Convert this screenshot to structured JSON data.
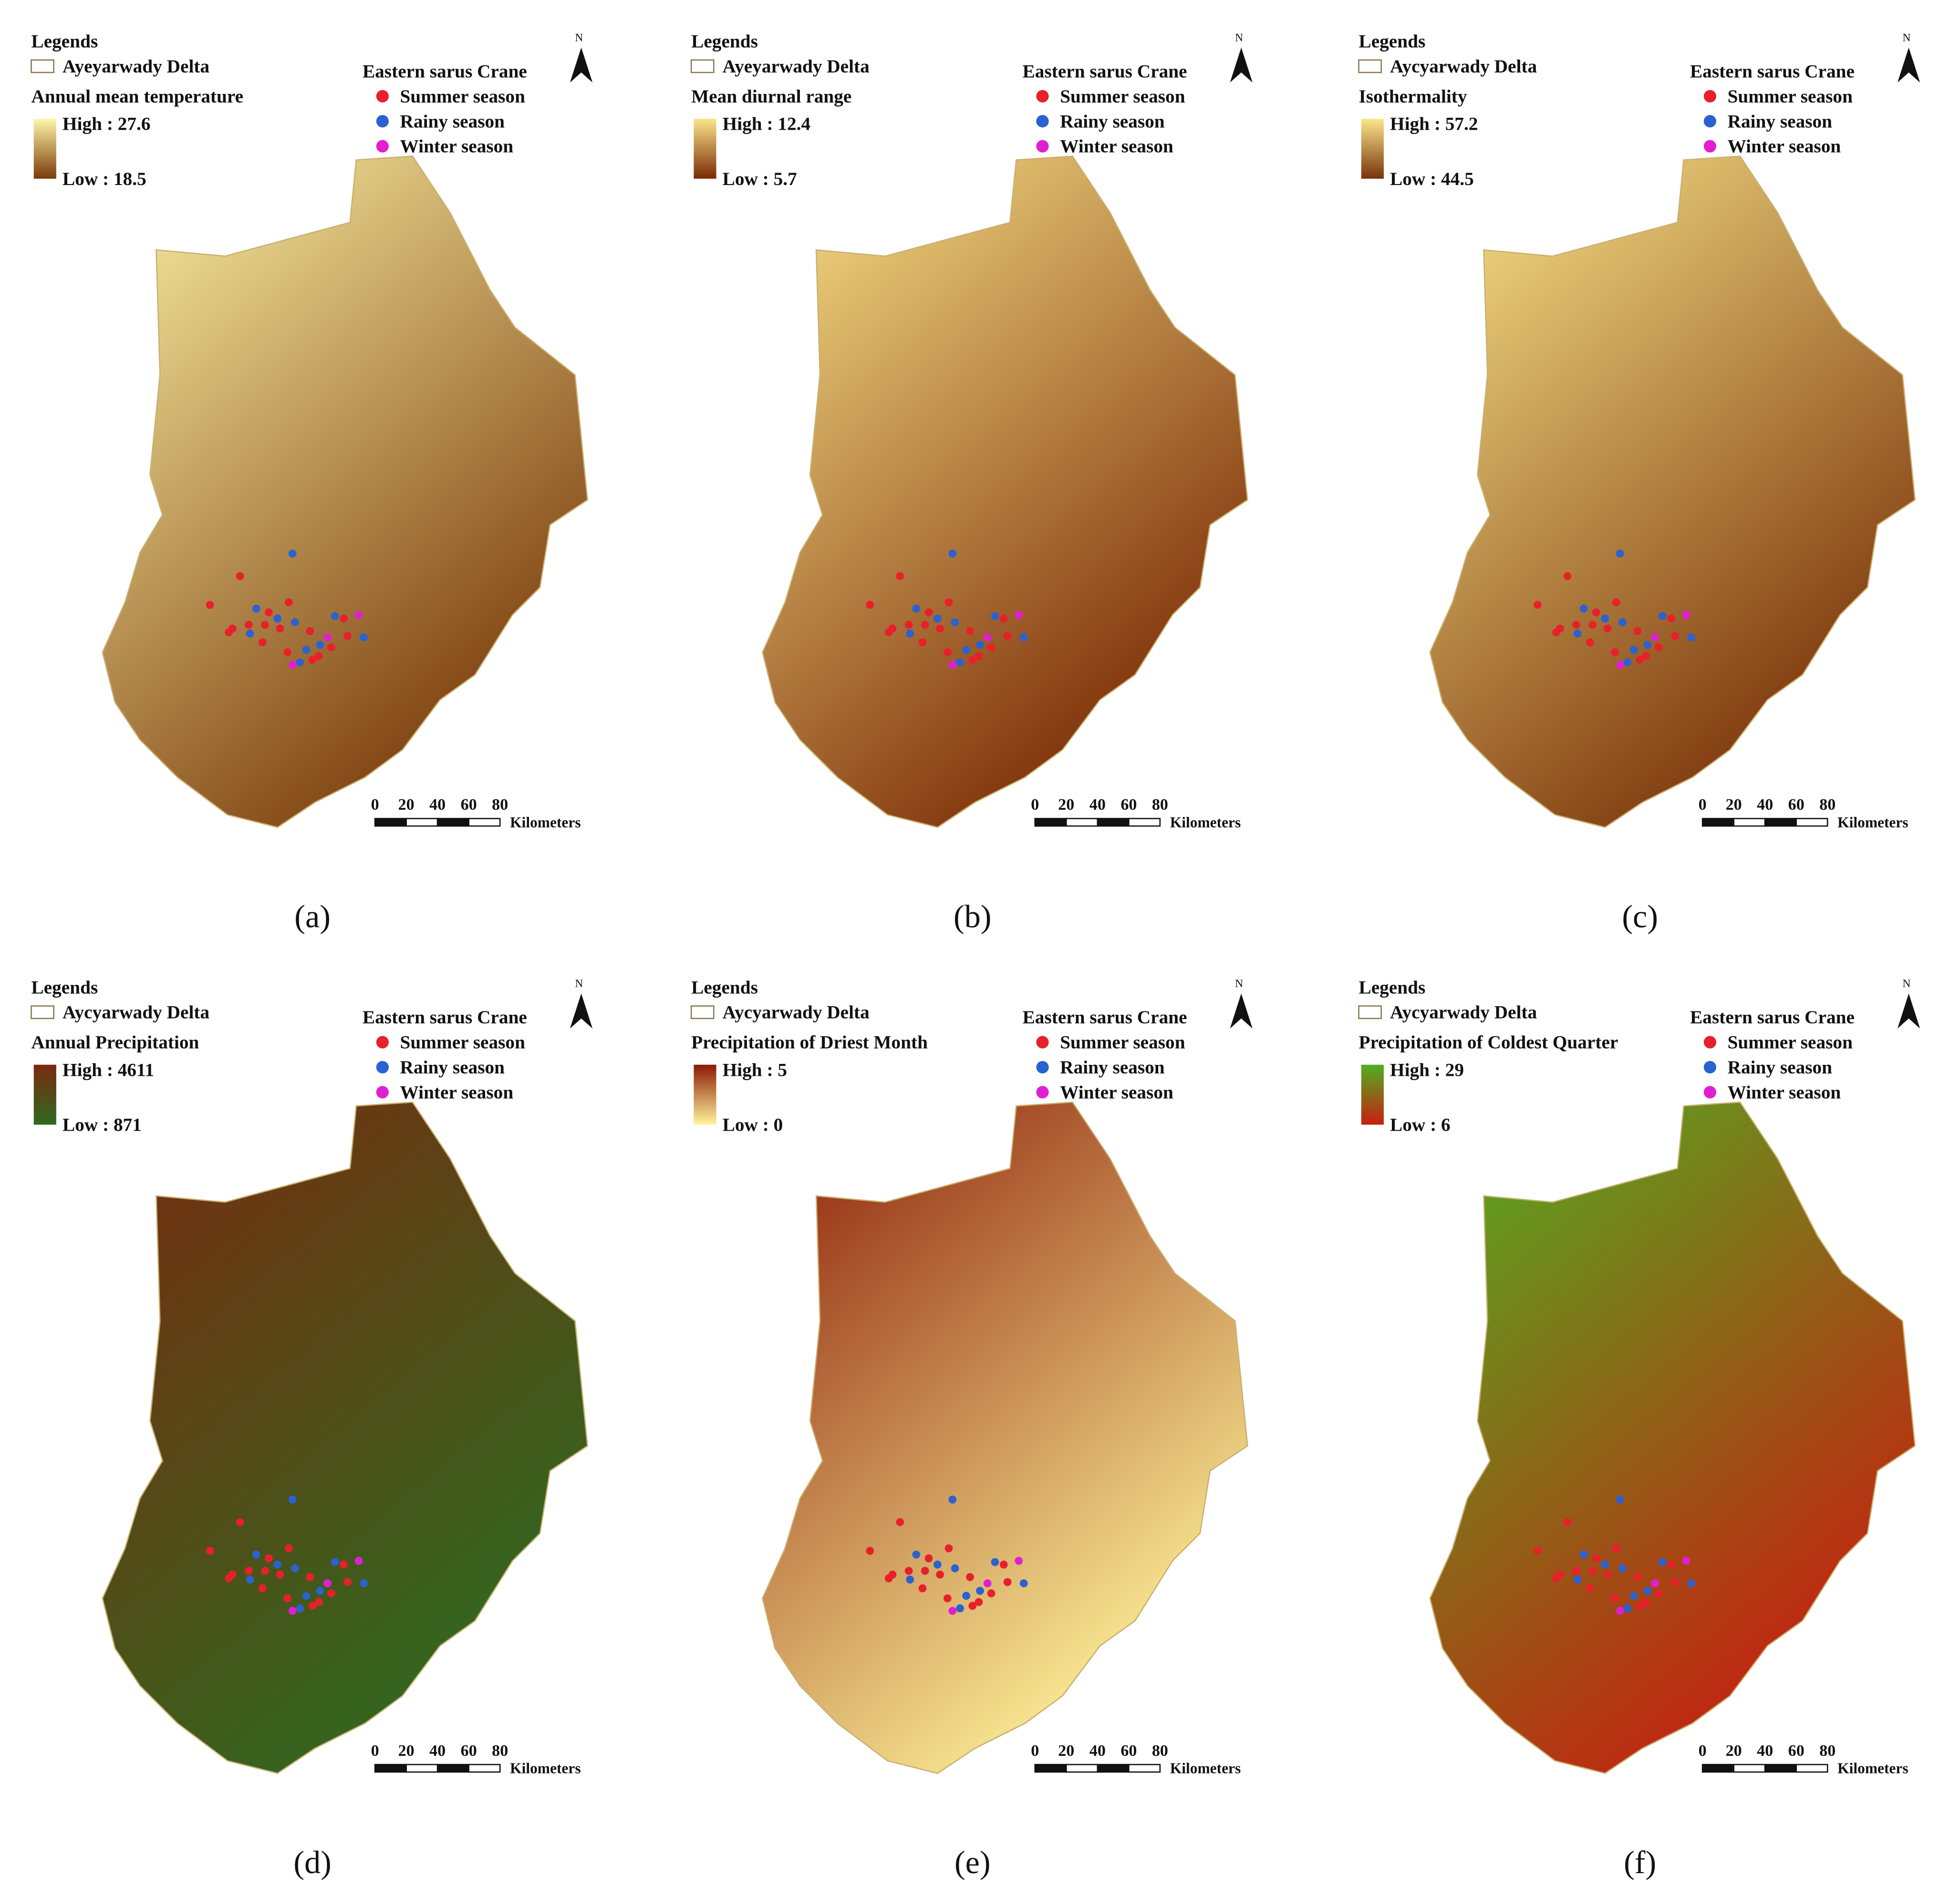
{
  "legend_heading": "Legends",
  "species_heading": "Eastern sarus Crane",
  "seasons": [
    {
      "name": "Summer season",
      "color": "#e8202a"
    },
    {
      "name": "Rainy season",
      "color": "#2a62d0"
    },
    {
      "name": "Winter season",
      "color": "#e020d0"
    }
  ],
  "north_label": "N",
  "scale_ticks": [
    "0",
    "20",
    "40",
    "60",
    "80"
  ],
  "scale_unit": "Kilometers",
  "panels": [
    {
      "label": "(a)",
      "boundary_label": "Ayeyarwady Delta",
      "variable": "Annual mean temperature",
      "high": "High : 27.6",
      "low": "Low : 18.5",
      "ramp": [
        "#fff6a8",
        "#7a3a0a"
      ]
    },
    {
      "label": "(b)",
      "boundary_label": "Ayeyarwady Delta",
      "variable": "Mean diurnal range",
      "high": "High : 12.4",
      "low": "Low : 5.7",
      "ramp": [
        "#fbe58a",
        "#7a2a05"
      ]
    },
    {
      "label": "(c)",
      "boundary_label": "Aycyarwady Delta",
      "variable": "Isothermality",
      "high": "High : 57.2",
      "low": "Low : 44.5",
      "ramp": [
        "#fbe88c",
        "#7a3208"
      ]
    },
    {
      "label": "(d)",
      "boundary_label": "Aycyarwady Delta",
      "variable": "Annual Precipitation",
      "high": "High : 4611",
      "low": "Low : 871",
      "ramp": [
        "#7a2a10",
        "#2e6a20"
      ]
    },
    {
      "label": "(e)",
      "boundary_label": "Aycyarwady Delta",
      "variable": "Precipitation of Driest Month",
      "high": "High : 5",
      "low": "Low : 0",
      "ramp": [
        "#8a1a05",
        "#fff49a"
      ]
    },
    {
      "label": "(f)",
      "boundary_label": "Aycyarwady Delta",
      "variable": "Precipitation of Coldest Quarter",
      "high": "High : 29",
      "low": "Low : 6",
      "ramp": [
        "#4fb020",
        "#c81e10"
      ]
    }
  ]
}
